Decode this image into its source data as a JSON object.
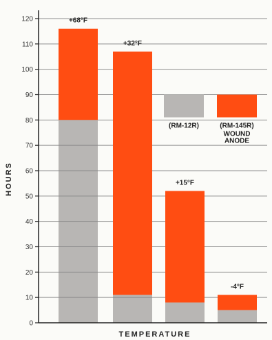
{
  "chart_data": {
    "type": "bar",
    "ylabel": "HOURS",
    "xlabel": "TEMPERATURE",
    "ylim": [
      0,
      120
    ],
    "yticks": [
      0,
      10,
      20,
      30,
      40,
      50,
      60,
      70,
      80,
      90,
      100,
      110,
      120
    ],
    "grid": true,
    "colors": {
      "orange": "#ff4d12",
      "gray": "#b8b6b4",
      "grid": "#8e8e8e",
      "axis": "#222222"
    },
    "series": [
      {
        "values": [
          80,
          11,
          8,
          5
        ],
        "color": "gray"
      },
      {
        "values": [
          116,
          107,
          52,
          11
        ],
        "color": "orange"
      }
    ],
    "bar_annotations": [
      "+68°F",
      "+32°F",
      "+15°F",
      "-4°F"
    ],
    "reference_bars": [
      {
        "value": 90,
        "color": "gray",
        "label": "(RM-12R)"
      },
      {
        "value": 90,
        "color": "orange",
        "label": "(RM-145R)",
        "sublabel": "WOUND\nANODE"
      }
    ]
  }
}
